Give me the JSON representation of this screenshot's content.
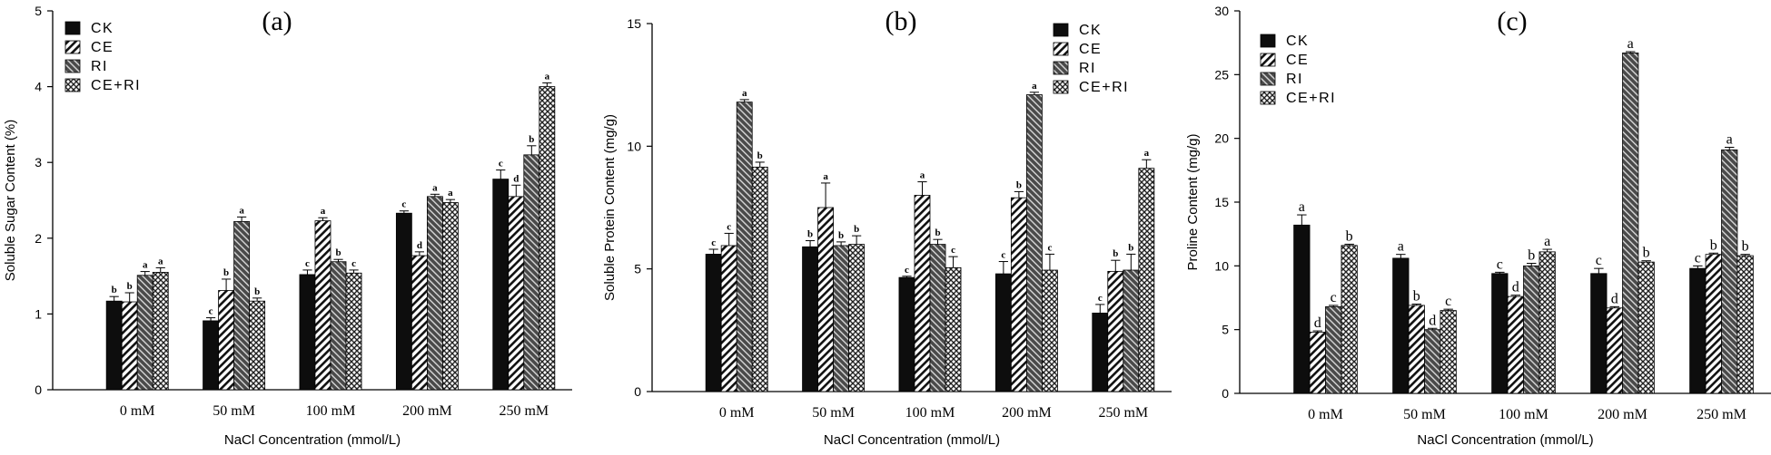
{
  "chart_data": [
    {
      "type": "bar",
      "panel_label": "(a)",
      "categories": [
        "0 mM",
        "50 mM",
        "100 mM",
        "200 mM",
        "250 mM"
      ],
      "series": [
        {
          "name": "CK",
          "values": [
            1.17,
            0.91,
            1.52,
            2.33,
            2.78
          ],
          "errors": [
            0.06,
            0.04,
            0.06,
            0.03,
            0.12
          ],
          "letters": [
            "b",
            "c",
            "c",
            "c",
            "c"
          ]
        },
        {
          "name": "CE",
          "values": [
            1.16,
            1.31,
            2.23,
            1.77,
            2.55
          ],
          "errors": [
            0.12,
            0.15,
            0.04,
            0.05,
            0.15
          ],
          "letters": [
            "b",
            "b",
            "a",
            "d",
            "d"
          ]
        },
        {
          "name": "RI",
          "values": [
            1.51,
            2.22,
            1.69,
            2.55,
            3.1
          ],
          "errors": [
            0.05,
            0.06,
            0.03,
            0.03,
            0.12
          ],
          "letters": [
            "a",
            "a",
            "b",
            "a",
            "b"
          ]
        },
        {
          "name": "CE+RI",
          "values": [
            1.55,
            1.17,
            1.54,
            2.47,
            4.0
          ],
          "errors": [
            0.06,
            0.04,
            0.04,
            0.04,
            0.05
          ],
          "letters": [
            "a",
            "b",
            "c",
            "a",
            "a"
          ]
        }
      ],
      "xlabel": "NaCl Concentration (mmol/L)",
      "ylabel": "Soluble Sugar Content (%)",
      "ylim": [
        0,
        5
      ],
      "yticks": [
        "0",
        "1",
        "2",
        "3",
        "4",
        "5"
      ],
      "legend": "top-left"
    },
    {
      "type": "bar",
      "panel_label": "(b)",
      "categories": [
        "0 mM",
        "50 mM",
        "100 mM",
        "200 mM",
        "250 mM"
      ],
      "series": [
        {
          "name": "CK",
          "values": [
            5.6,
            5.9,
            4.65,
            4.8,
            3.2
          ],
          "errors": [
            0.2,
            0.25,
            0.05,
            0.5,
            0.35
          ],
          "letters": [
            "c",
            "b",
            "c",
            "c",
            "c"
          ]
        },
        {
          "name": "CE",
          "values": [
            5.95,
            7.5,
            8.0,
            7.9,
            4.9
          ],
          "errors": [
            0.5,
            1.0,
            0.55,
            0.25,
            0.45
          ],
          "letters": [
            "c",
            "a",
            "a",
            "b",
            "b"
          ]
        },
        {
          "name": "RI",
          "values": [
            11.8,
            5.95,
            6.0,
            12.1,
            4.95
          ],
          "errors": [
            0.1,
            0.15,
            0.2,
            0.1,
            0.65
          ],
          "letters": [
            "a",
            "b",
            "b",
            "a",
            "b"
          ]
        },
        {
          "name": "CE+RI",
          "values": [
            9.15,
            6.0,
            5.05,
            4.95,
            9.1
          ],
          "errors": [
            0.2,
            0.35,
            0.45,
            0.65,
            0.35
          ],
          "letters": [
            "b",
            "b",
            "c",
            "c",
            "a"
          ]
        }
      ],
      "xlabel": "NaCl Concentration (mmol/L)",
      "ylabel": "Soluble Protein Content (mg/g)",
      "ylim": [
        0,
        15
      ],
      "yticks": [
        "0",
        "5",
        "10",
        "15"
      ],
      "legend": "top-right"
    },
    {
      "type": "bar",
      "panel_label": "(c)",
      "categories": [
        "0 mM",
        "50 mM",
        "100 mM",
        "200 mM",
        "250 mM"
      ],
      "series": [
        {
          "name": "CK",
          "values": [
            13.2,
            10.6,
            9.4,
            9.4,
            9.8
          ],
          "errors": [
            0.8,
            0.3,
            0.1,
            0.4,
            0.2
          ],
          "letters": [
            "a",
            "a",
            "c",
            "c",
            "c"
          ]
        },
        {
          "name": "CE",
          "values": [
            4.8,
            6.9,
            7.6,
            6.7,
            10.9
          ],
          "errors": [
            0.1,
            0.1,
            0.1,
            0.1,
            0.1
          ],
          "letters": [
            "d",
            "b",
            "d",
            "d",
            "b"
          ]
        },
        {
          "name": "RI",
          "values": [
            6.8,
            5.0,
            10.0,
            26.7,
            19.1
          ],
          "errors": [
            0.1,
            0.1,
            0.2,
            0.1,
            0.2
          ],
          "letters": [
            "c",
            "d",
            "b",
            "a",
            "a"
          ]
        },
        {
          "name": "CE+RI",
          "values": [
            11.6,
            6.5,
            11.1,
            10.3,
            10.8
          ],
          "errors": [
            0.1,
            0.1,
            0.2,
            0.1,
            0.1
          ],
          "letters": [
            "b",
            "c",
            "a",
            "b",
            "b"
          ]
        }
      ],
      "xlabel": "NaCl Concentration (mmol/L)",
      "ylabel": "Proline Content (mg/g)",
      "ylim": [
        0,
        30
      ],
      "yticks": [
        "0",
        "5",
        "10",
        "15",
        "20",
        "25",
        "30"
      ],
      "legend": "top-left"
    }
  ]
}
